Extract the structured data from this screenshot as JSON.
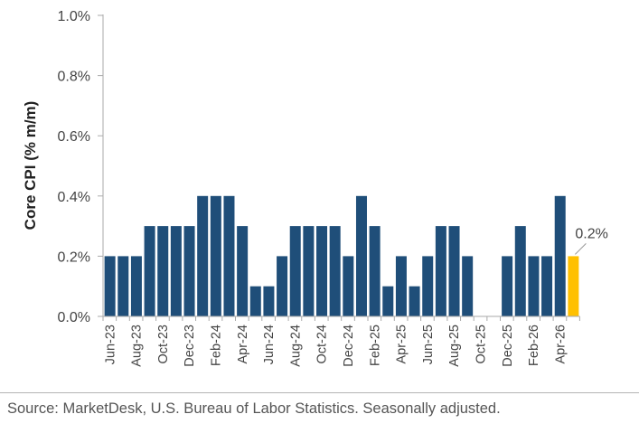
{
  "chart_data": {
    "type": "bar",
    "ylabel": "Core CPI (% m/m)",
    "ylim": [
      0,
      1.0
    ],
    "yticks": [
      "0.0%",
      "0.2%",
      "0.4%",
      "0.6%",
      "0.8%",
      "1.0%"
    ],
    "grid": false,
    "categories": [
      "Jun-23",
      "Jul-23",
      "Aug-23",
      "Sep-23",
      "Oct-23",
      "Nov-23",
      "Dec-23",
      "Jan-24",
      "Feb-24",
      "Mar-24",
      "Apr-24",
      "May-24",
      "Jun-24",
      "Jul-24",
      "Aug-24",
      "Sep-24",
      "Oct-24",
      "Nov-24",
      "Dec-24",
      "Jan-25",
      "Feb-25",
      "Mar-25",
      "Apr-25",
      "May-25",
      "Jun-25",
      "Jul-25",
      "Aug-25",
      "Sep-25",
      "Oct-25",
      "Nov-25",
      "Dec-25",
      "Jan-26",
      "Feb-26",
      "Mar-26",
      "Apr-26",
      "May-26"
    ],
    "xtick_labels": [
      "Jun-23",
      "Aug-23",
      "Oct-23",
      "Dec-23",
      "Feb-24",
      "Apr-24",
      "Jun-24",
      "Aug-24",
      "Oct-24",
      "Dec-24",
      "Feb-25",
      "Apr-25",
      "Jun-25",
      "Aug-25",
      "Oct-25",
      "Dec-25",
      "Feb-26",
      "Apr-26"
    ],
    "values": [
      0.2,
      0.2,
      0.2,
      0.3,
      0.3,
      0.3,
      0.3,
      0.4,
      0.4,
      0.4,
      0.3,
      0.1,
      0.1,
      0.2,
      0.3,
      0.3,
      0.3,
      0.3,
      0.2,
      0.4,
      0.3,
      0.1,
      0.2,
      0.1,
      0.2,
      0.3,
      0.3,
      0.2,
      null,
      null,
      0.2,
      0.3,
      0.2,
      0.2,
      0.4,
      0.2
    ],
    "highlight_index": 35,
    "annotation": "0.2%",
    "colors": {
      "bar": "#1f4e79",
      "highlight": "#ffc000",
      "axis": "#aaaaaa"
    }
  },
  "source": "Source: MarketDesk, U.S. Bureau of Labor Statistics. Seasonally adjusted."
}
